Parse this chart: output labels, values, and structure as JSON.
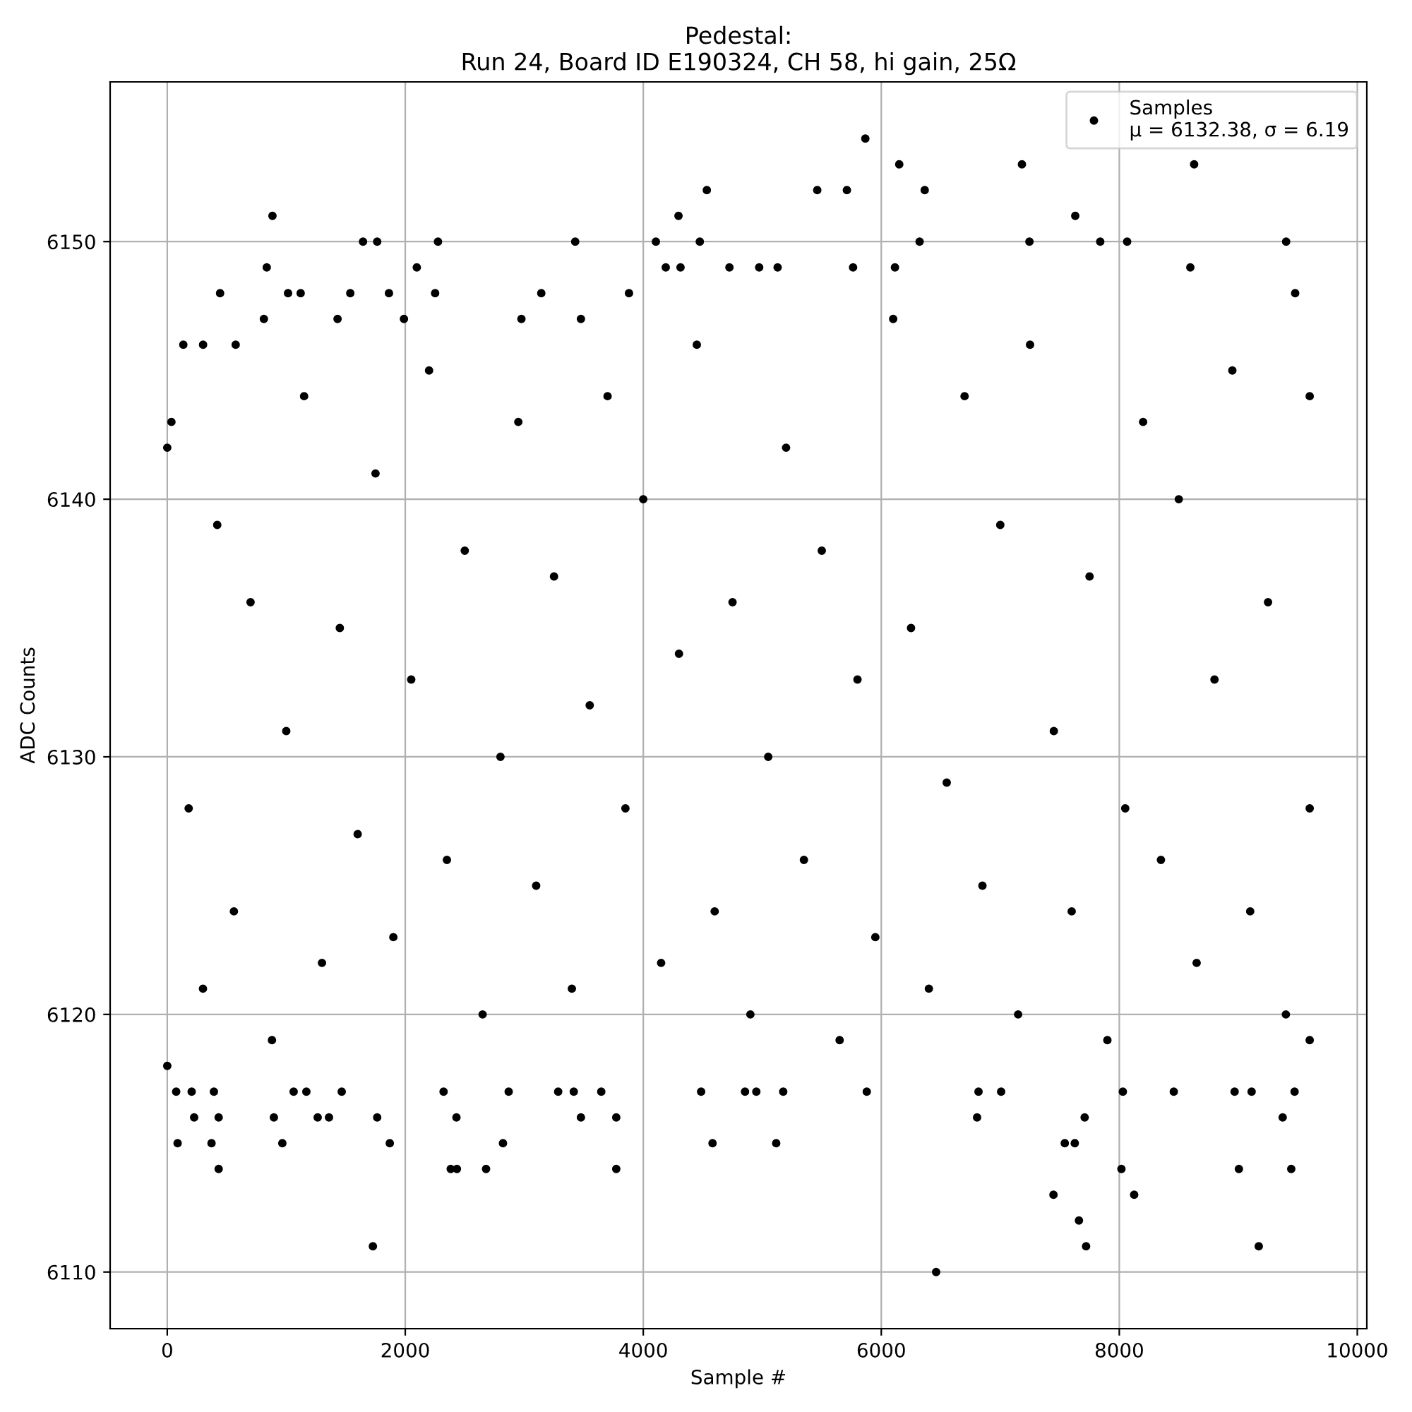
{
  "chart_data": {
    "type": "scatter",
    "title": "Pedestal:\nRun 24, Board ID E190324, CH 58, hi gain, 25Ω",
    "xlabel": "Sample #",
    "ylabel": "ADC Counts",
    "xlim": [
      -480,
      10080
    ],
    "ylim": [
      6107.8,
      6156.2
    ],
    "xticks": [
      0,
      2000,
      4000,
      6000,
      8000,
      10000
    ],
    "yticks": [
      6110,
      6120,
      6130,
      6140,
      6150
    ],
    "grid": true,
    "legend": "top right",
    "marker": "circle",
    "series": [
      {
        "name": "Samples\nμ = 6132.38, σ = 6.19",
        "color": "#000000",
        "x": [
          5866,
          6151,
          5462,
          5711,
          6365,
          7182,
          7630,
          8629,
          6322,
          7245,
          7840,
          8066,
          9402,
          4974,
          5129,
          5763,
          6115,
          8597,
          9478,
          884,
          1645,
          1764,
          2275,
          3428,
          4106,
          4296,
          4534,
          4475,
          836,
          2097,
          4189,
          4313,
          4724,
          444,
          1015,
          1121,
          1538,
          1863,
          2251,
          3143,
          3880,
          812,
          1431,
          1989,
          2976,
          3476,
          135,
          301,
          575,
          1728,
          432,
          87,
          372,
          967,
          1870,
          2821,
          4582,
          2382,
          2434,
          2679,
          3773,
          75,
          205,
          392,
          1062,
          1169,
          1466,
          2322,
          2869,
          3285,
          3416,
          3647,
          4486,
          226,
          432,
          896,
          1264,
          1359,
          1764,
          2430,
          3476,
          3773,
          6461,
          7721,
          9172,
          7661,
          7447,
          8125,
          8018,
          9005,
          9445,
          7542,
          7626,
          5117,
          6805,
          7709,
          9373,
          5878,
          6817,
          7007,
          8458,
          8030,
          8969,
          9112,
          9473,
          4855,
          5176,
          4950,
          0,
          0,
          35,
          180,
          300,
          420,
          560,
          700,
          880,
          1000,
          1150,
          1300,
          1450,
          1600,
          1750,
          1900,
          2050,
          2200,
          2350,
          2500,
          2650,
          2800,
          2950,
          3100,
          3250,
          3400,
          3550,
          3700,
          3850,
          4000,
          4150,
          4300,
          4450,
          4600,
          4750,
          4900,
          5050,
          5200,
          5350,
          5500,
          5650,
          5800,
          5950,
          6100,
          6250,
          6400,
          6550,
          6700,
          6850,
          7000,
          7150,
          7250,
          7450,
          7600,
          7750,
          7900,
          8050,
          8200,
          8350,
          8500,
          8650,
          8800,
          8950,
          9100,
          9250,
          9400,
          9600,
          9600,
          9600
        ],
        "values": [
          6154,
          6153,
          6152,
          6152,
          6152,
          6153,
          6151,
          6153,
          6150,
          6150,
          6150,
          6150,
          6150,
          6149,
          6149,
          6149,
          6149,
          6149,
          6148,
          6151,
          6150,
          6150,
          6150,
          6150,
          6150,
          6151,
          6152,
          6150,
          6149,
          6149,
          6149,
          6149,
          6149,
          6148,
          6148,
          6148,
          6148,
          6148,
          6148,
          6148,
          6148,
          6147,
          6147,
          6147,
          6147,
          6147,
          6146,
          6146,
          6146,
          6111,
          6114,
          6115,
          6115,
          6115,
          6115,
          6115,
          6115,
          6114,
          6114,
          6114,
          6114,
          6117,
          6117,
          6117,
          6117,
          6117,
          6117,
          6117,
          6117,
          6117,
          6117,
          6117,
          6117,
          6116,
          6116,
          6116,
          6116,
          6116,
          6116,
          6116,
          6116,
          6116,
          6110,
          6111,
          6111,
          6112,
          6113,
          6113,
          6114,
          6114,
          6114,
          6115,
          6115,
          6115,
          6116,
          6116,
          6116,
          6117,
          6117,
          6117,
          6117,
          6117,
          6117,
          6117,
          6117,
          6117,
          6117,
          6117,
          6118,
          6142,
          6143,
          6128,
          6121,
          6139,
          6124,
          6136,
          6119,
          6131,
          6144,
          6122,
          6135,
          6127,
          6141,
          6123,
          6133,
          6145,
          6126,
          6138,
          6120,
          6130,
          6143,
          6125,
          6137,
          6121,
          6132,
          6144,
          6128,
          6140,
          6122,
          6134,
          6146,
          6124,
          6136,
          6120,
          6130,
          6142,
          6126,
          6138,
          6119,
          6133,
          6123,
          6147,
          6135,
          6121,
          6129,
          6144,
          6125,
          6139,
          6120,
          6146,
          6131,
          6124,
          6137,
          6119,
          6128,
          6143,
          6126,
          6140,
          6122,
          6133,
          6145,
          6124,
          6136,
          6120,
          6144,
          6119,
          6128
        ]
      }
    ]
  }
}
